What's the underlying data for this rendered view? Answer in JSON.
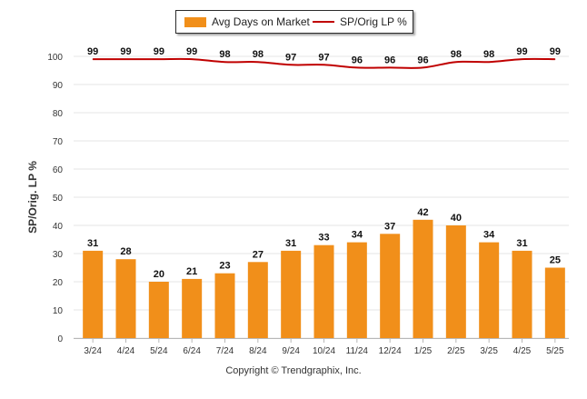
{
  "chart_data": {
    "type": "bar",
    "categories": [
      "3/24",
      "4/24",
      "5/24",
      "6/24",
      "7/24",
      "8/24",
      "9/24",
      "10/24",
      "11/24",
      "12/24",
      "1/25",
      "2/25",
      "3/25",
      "4/25",
      "5/25"
    ],
    "series": [
      {
        "name": "Avg Days on Market",
        "type": "bar",
        "values": [
          31,
          28,
          20,
          21,
          23,
          27,
          31,
          33,
          34,
          37,
          42,
          40,
          34,
          31,
          25
        ],
        "color": "#f18f1a"
      },
      {
        "name": "SP/Orig LP %",
        "type": "line",
        "values": [
          99,
          99,
          99,
          99,
          98,
          98,
          97,
          97,
          96,
          96,
          96,
          98,
          98,
          99,
          99
        ],
        "color": "#c00000"
      }
    ],
    "ylabel": "SP/Orig. LP %",
    "xlabel": "",
    "ylim": [
      0,
      100
    ],
    "yticks": [
      0,
      10,
      20,
      30,
      40,
      50,
      60,
      70,
      80,
      90,
      100
    ],
    "grid": true,
    "legend": "top-center"
  },
  "legend": {
    "bar_label": "Avg Days on Market",
    "line_label": "SP/Orig LP %"
  },
  "footer": {
    "copyright": "Copyright © Trendgraphix, Inc."
  },
  "colors": {
    "bar": "#f18f1a",
    "line": "#c00000",
    "grid": "#e6e6e6",
    "axis": "#b8b8b8"
  }
}
